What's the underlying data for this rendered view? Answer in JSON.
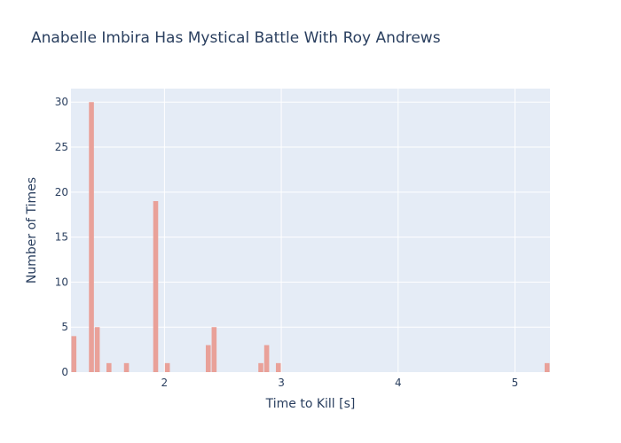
{
  "chart_data": {
    "type": "bar",
    "title": "Anabelle Imbira Has Mystical Battle With Roy Andrews",
    "xlabel": "Time to Kill [s]",
    "ylabel": "Number of Times",
    "xlim": [
      1.2,
      5.3
    ],
    "ylim": [
      0,
      31.5
    ],
    "bin_width": 0.05,
    "x_ticks": [
      2,
      3,
      4,
      5
    ],
    "y_ticks": [
      0,
      5,
      10,
      15,
      20,
      25,
      30
    ],
    "bins": [
      {
        "start": 1.2,
        "count": 4
      },
      {
        "start": 1.35,
        "count": 30
      },
      {
        "start": 1.4,
        "count": 5
      },
      {
        "start": 1.5,
        "count": 1
      },
      {
        "start": 1.65,
        "count": 1
      },
      {
        "start": 1.9,
        "count": 19
      },
      {
        "start": 2.0,
        "count": 1
      },
      {
        "start": 2.35,
        "count": 3
      },
      {
        "start": 2.4,
        "count": 5
      },
      {
        "start": 2.8,
        "count": 1
      },
      {
        "start": 2.85,
        "count": 3
      },
      {
        "start": 2.95,
        "count": 1
      },
      {
        "start": 5.25,
        "count": 1
      }
    ],
    "grid": true,
    "colors": {
      "bar": "#e9a199",
      "plot_background": "#e5ecf6",
      "gridline": "#ffffff",
      "text": "#2a3f5f"
    }
  }
}
